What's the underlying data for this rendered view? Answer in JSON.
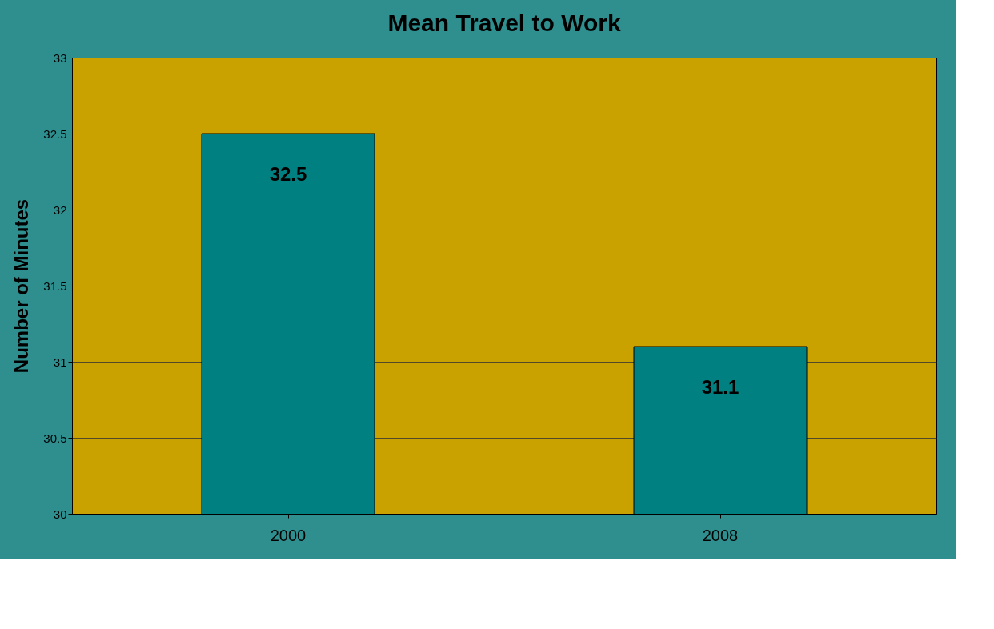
{
  "chart_data": {
    "type": "bar",
    "title": "Mean Travel to Work",
    "ylabel": "Number of Minutes",
    "categories": [
      "2000",
      "2008"
    ],
    "series": [
      {
        "color": "#008080",
        "values": [
          32.5,
          31.1
        ]
      }
    ],
    "ylim": [
      30,
      33
    ],
    "yticks": [
      30,
      30.5,
      31,
      31.5,
      32,
      32.5,
      33
    ],
    "grid": "y",
    "data_labels": true,
    "legend": false
  }
}
